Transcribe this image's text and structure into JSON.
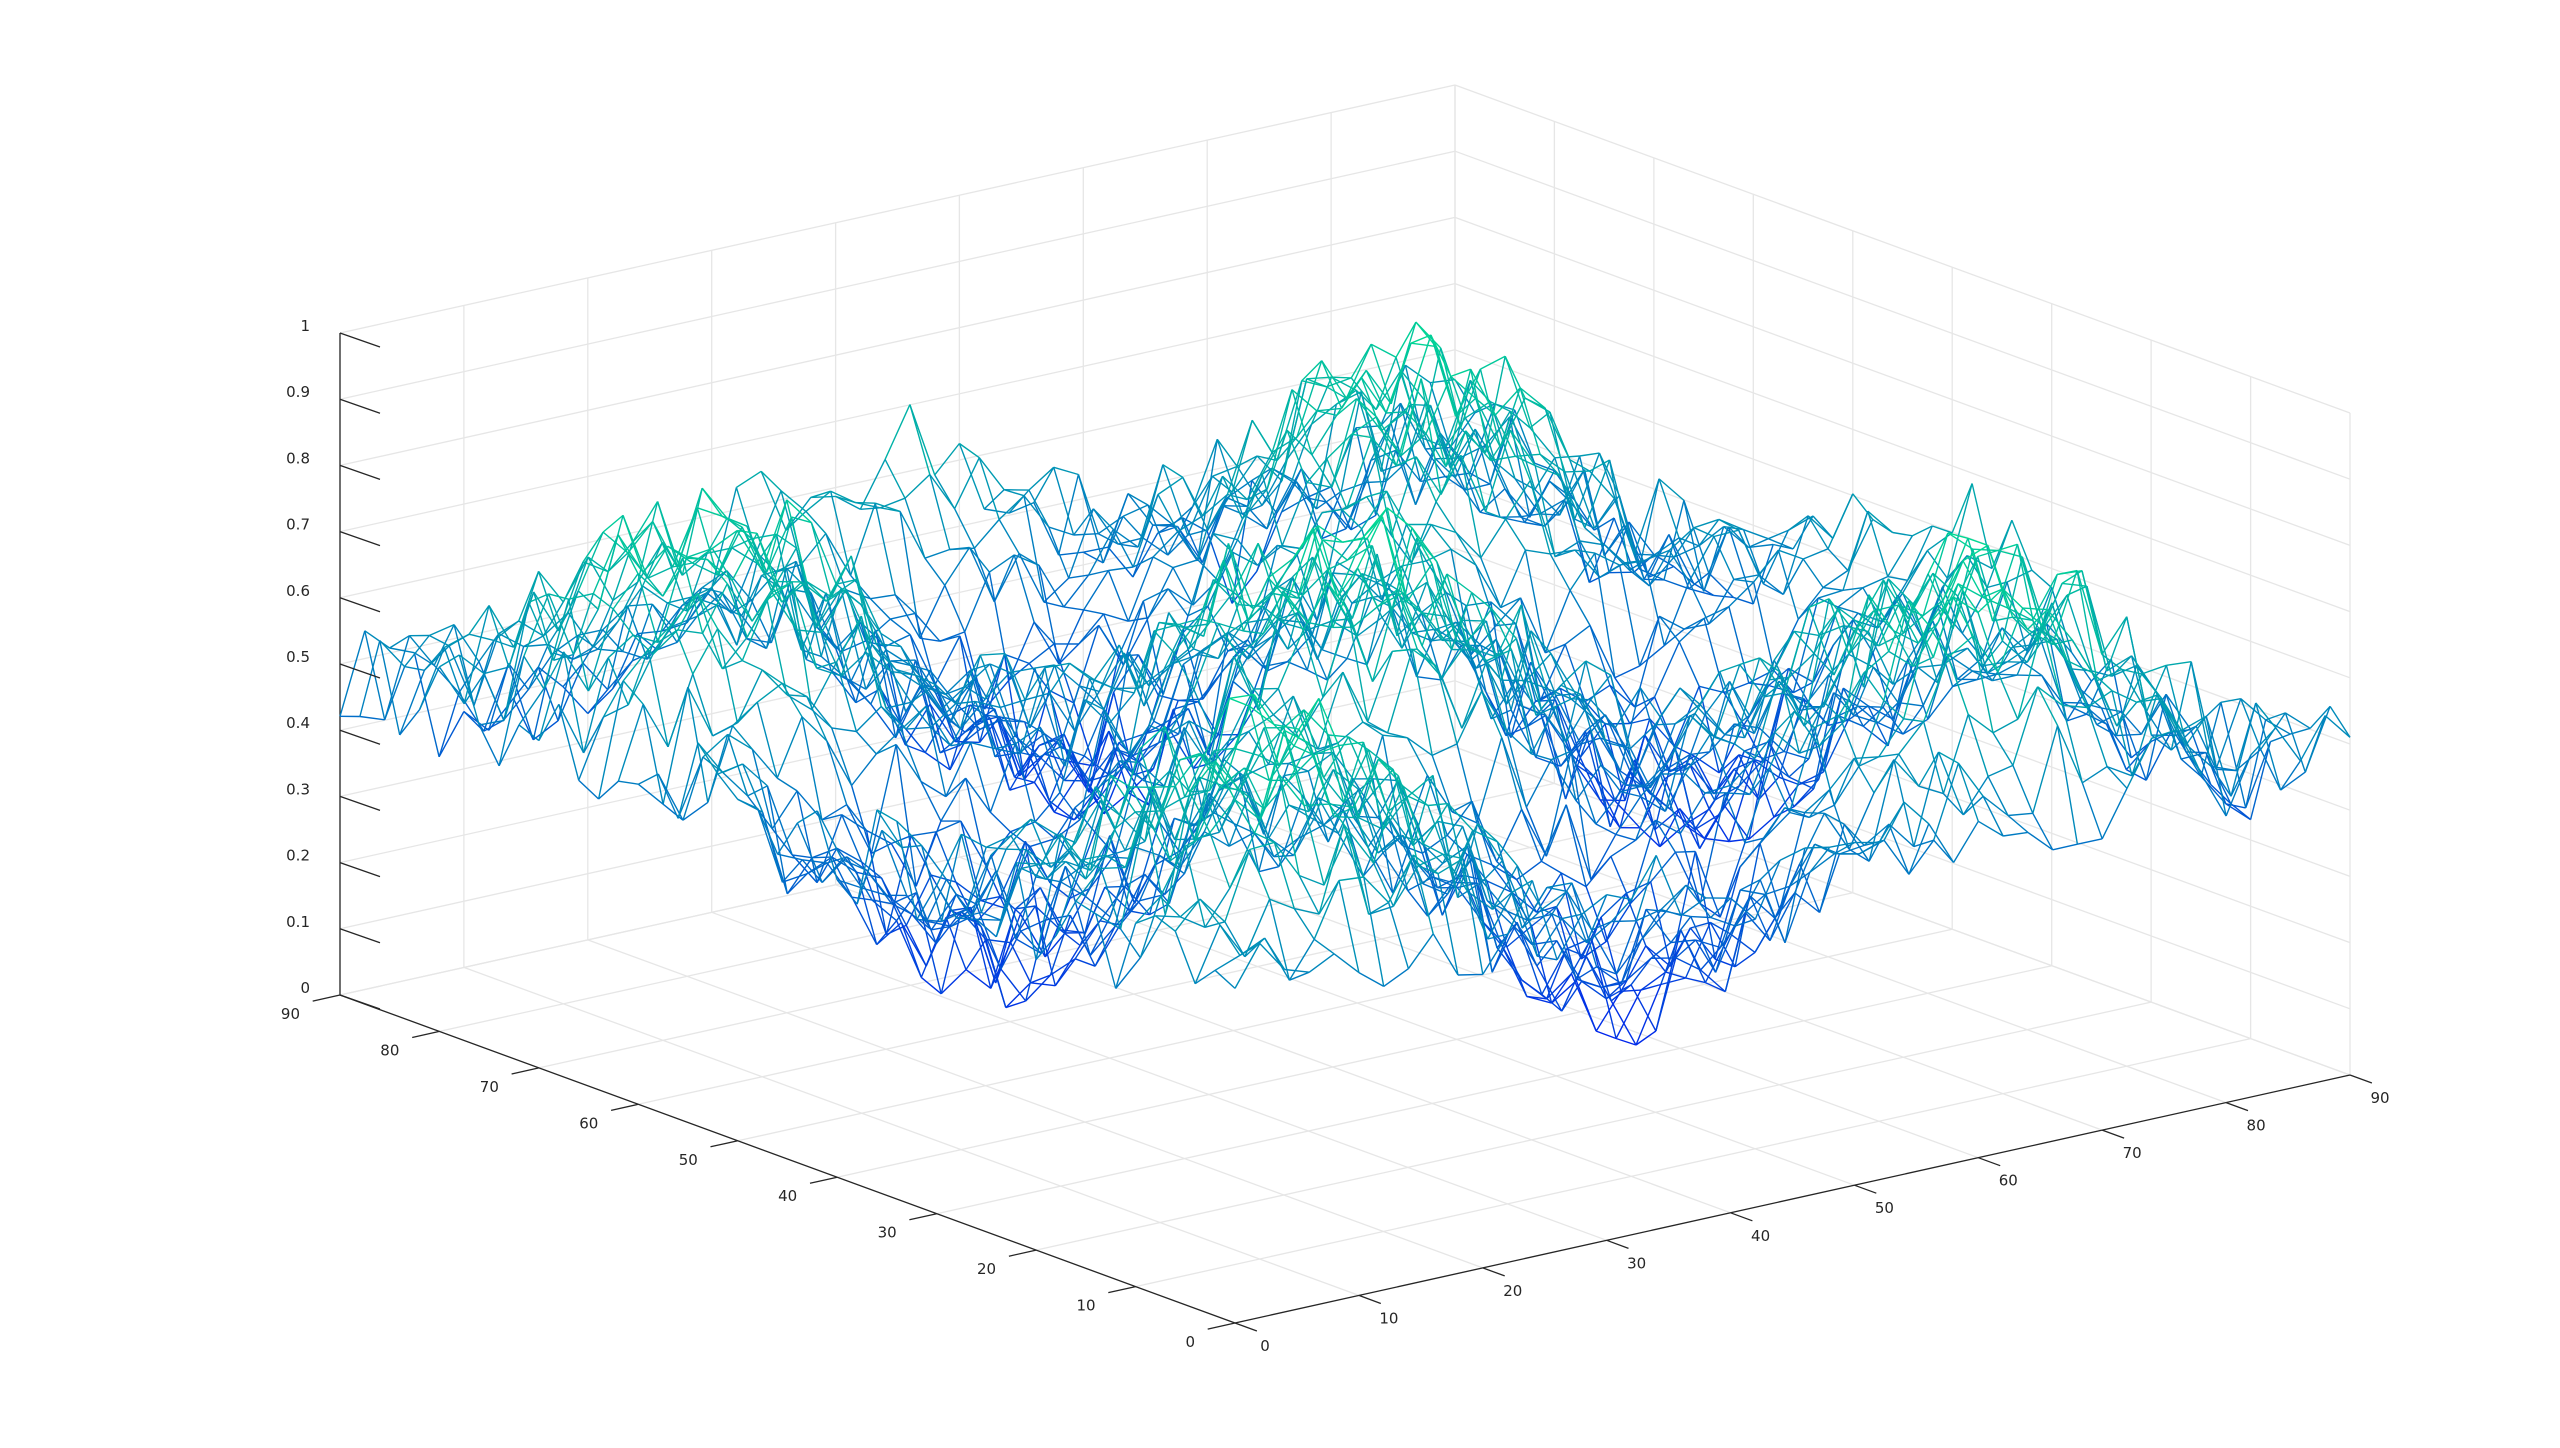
{
  "chart_data": {
    "type": "mesh3d",
    "title": "",
    "xlabel": "",
    "ylabel": "",
    "zlabel": "",
    "xlim": [
      0,
      90
    ],
    "ylim": [
      0,
      90
    ],
    "zlim": [
      0,
      1
    ],
    "x_ticks": [
      "0",
      "10",
      "20",
      "30",
      "40",
      "50",
      "60",
      "70",
      "80",
      "90"
    ],
    "y_ticks": [
      "0",
      "10",
      "20",
      "30",
      "40",
      "50",
      "60",
      "70",
      "80",
      "90"
    ],
    "z_ticks": [
      "0",
      "0.1",
      "0.2",
      "0.3",
      "0.4",
      "0.5",
      "0.6",
      "0.7",
      "0.8",
      "0.9",
      "1"
    ],
    "grid": true,
    "colormap": "winter",
    "colormap_low": "#0000ff",
    "colormap_high": "#00ff80",
    "surface": {
      "formula": "0.5 + 0.25*sin(x/9) * sin(y/9) + uniform noise",
      "grid_step": 2,
      "noise_amplitude": 0.08,
      "approx_min": 0.05,
      "approx_max": 0.93
    }
  }
}
